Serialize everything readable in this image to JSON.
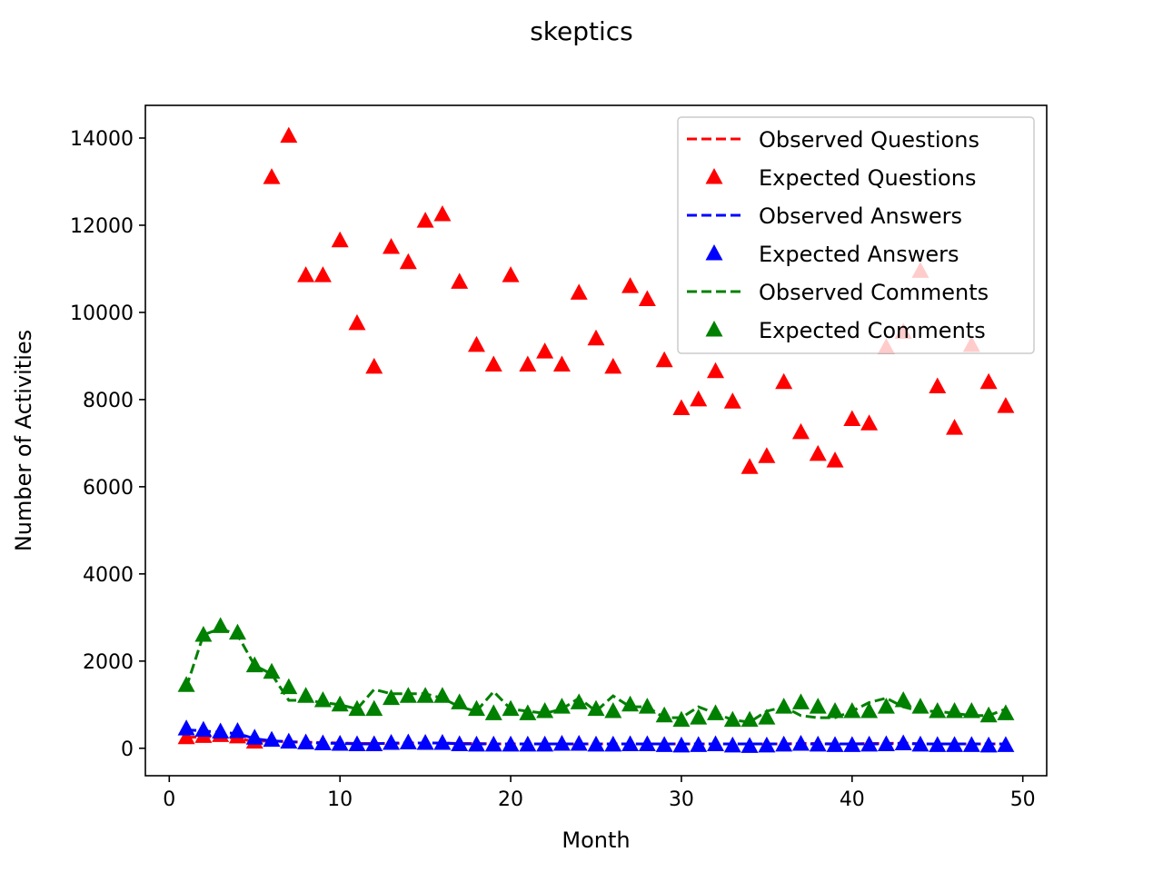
{
  "chart_data": {
    "type": "line",
    "title": "skeptics",
    "xlabel": "Month",
    "ylabel": "Number of Activities",
    "xlim": [
      -1.4,
      51.4
    ],
    "ylim": [
      -630,
      14750
    ],
    "xticks": [
      0,
      10,
      20,
      30,
      40,
      50
    ],
    "yticks": [
      0,
      2000,
      4000,
      6000,
      8000,
      10000,
      12000,
      14000
    ],
    "legend_position": "upper right",
    "x": [
      1,
      2,
      3,
      4,
      5,
      6,
      7,
      8,
      9,
      10,
      11,
      12,
      13,
      14,
      15,
      16,
      17,
      18,
      19,
      20,
      21,
      22,
      23,
      24,
      25,
      26,
      27,
      28,
      29,
      30,
      31,
      32,
      33,
      34,
      35,
      36,
      37,
      38,
      39,
      40,
      41,
      42,
      43,
      44,
      45,
      46,
      47,
      48,
      49
    ],
    "series": [
      {
        "name": "Observed Questions",
        "style": "dashed-line",
        "color": "#ff0000",
        "values": [
          250,
          260,
          270,
          220,
          160,
          170,
          150,
          140,
          130,
          120,
          110,
          110,
          110,
          120,
          120,
          120,
          110,
          110,
          100,
          100,
          100,
          100,
          100,
          100,
          100,
          100,
          100,
          100,
          100,
          100,
          100,
          100,
          100,
          100,
          100,
          100,
          110,
          110,
          100,
          100,
          110,
          110,
          120,
          100,
          100,
          100,
          100,
          100,
          100
        ]
      },
      {
        "name": "Expected Questions",
        "style": "triangle-marker",
        "color": "#ff0000",
        "values": [
          250,
          280,
          300,
          270,
          150,
          13100,
          14050,
          10850,
          10850,
          11650,
          9750,
          8750,
          11500,
          11150,
          12100,
          12250,
          10700,
          9250,
          8800,
          10850,
          8800,
          9100,
          8800,
          10450,
          9400,
          8750,
          10600,
          10300,
          8900,
          7800,
          8000,
          8650,
          7950,
          6450,
          6700,
          8400,
          7250,
          6750,
          6600,
          7550,
          7450,
          9200,
          9550,
          10950,
          8300,
          7350,
          9250,
          8400,
          7850
        ]
      },
      {
        "name": "Observed Answers",
        "style": "dashed-line",
        "color": "#0000ff",
        "values": [
          420,
          400,
          360,
          340,
          220,
          170,
          150,
          130,
          120,
          110,
          100,
          100,
          120,
          120,
          120,
          120,
          100,
          100,
          100,
          100,
          100,
          100,
          100,
          100,
          100,
          100,
          100,
          100,
          100,
          100,
          100,
          100,
          100,
          100,
          100,
          100,
          100,
          100,
          100,
          100,
          100,
          100,
          110,
          100,
          100,
          100,
          100,
          100,
          100
        ]
      },
      {
        "name": "Expected Answers",
        "style": "triangle-marker",
        "color": "#0000ff",
        "values": [
          450,
          420,
          380,
          390,
          240,
          190,
          150,
          130,
          110,
          100,
          90,
          90,
          120,
          130,
          120,
          120,
          90,
          80,
          80,
          80,
          80,
          80,
          100,
          100,
          80,
          80,
          90,
          90,
          70,
          60,
          70,
          90,
          60,
          50,
          60,
          80,
          100,
          80,
          70,
          70,
          80,
          90,
          110,
          80,
          70,
          70,
          70,
          60,
          70
        ]
      },
      {
        "name": "Observed Comments",
        "style": "dashed-line",
        "color": "#008000",
        "values": [
          1400,
          2600,
          2750,
          2600,
          1900,
          1700,
          1100,
          1100,
          1050,
          1000,
          900,
          1350,
          1250,
          1250,
          1250,
          1150,
          950,
          850,
          1300,
          900,
          850,
          800,
          900,
          1150,
          850,
          1200,
          950,
          950,
          700,
          700,
          950,
          800,
          650,
          600,
          850,
          950,
          750,
          700,
          700,
          850,
          1050,
          1150,
          950,
          850,
          850,
          800,
          750,
          750,
          900
        ]
      },
      {
        "name": "Expected Comments",
        "style": "triangle-marker",
        "color": "#008000",
        "values": [
          1450,
          2600,
          2800,
          2650,
          1900,
          1750,
          1400,
          1200,
          1100,
          1000,
          900,
          900,
          1150,
          1200,
          1200,
          1200,
          1050,
          900,
          800,
          900,
          800,
          850,
          950,
          1050,
          900,
          850,
          1000,
          950,
          750,
          650,
          700,
          800,
          650,
          650,
          700,
          950,
          1050,
          950,
          850,
          850,
          850,
          950,
          1100,
          950,
          850,
          850,
          850,
          750,
          800
        ]
      }
    ]
  }
}
